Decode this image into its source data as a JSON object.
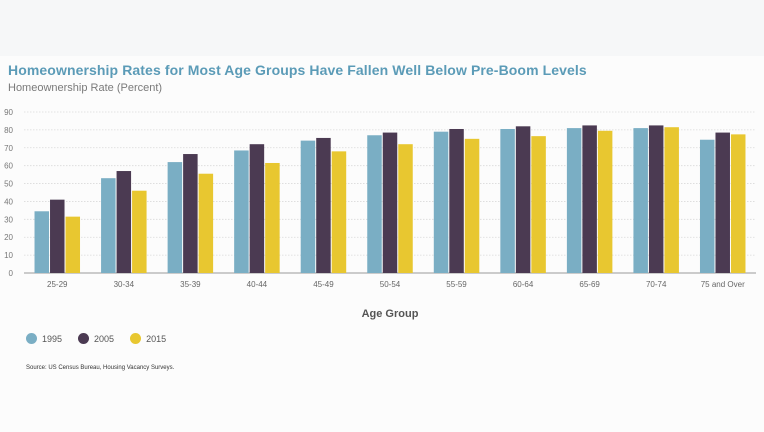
{
  "chart_data": {
    "type": "bar",
    "title": "Homeownership Rates for Most Age Groups Have Fallen Well Below Pre-Boom Levels",
    "ylabel": "Homeownership Rate (Percent)",
    "xlabel": "Age Group",
    "ylim": [
      0,
      90
    ],
    "yticks": [
      0,
      10,
      20,
      30,
      40,
      50,
      60,
      70,
      80,
      90
    ],
    "grid": true,
    "legend": "bottom-left",
    "categories": [
      "25-29",
      "30-34",
      "35-39",
      "40-44",
      "45-49",
      "50-54",
      "55-59",
      "60-64",
      "65-69",
      "70-74",
      "75 and Over"
    ],
    "series": [
      {
        "name": "1995",
        "color": "#7aaec4",
        "values": [
          34.5,
          53,
          62,
          68.5,
          74,
          77,
          79,
          80.5,
          81,
          81,
          74.5
        ]
      },
      {
        "name": "2005",
        "color": "#4b3a52",
        "values": [
          41,
          57,
          66.5,
          72,
          75.5,
          78.5,
          80.5,
          82,
          82.5,
          82.5,
          78.5
        ]
      },
      {
        "name": "2015",
        "color": "#e8c730",
        "values": [
          31.5,
          46,
          55.5,
          61.5,
          68,
          72,
          75,
          76.5,
          79.5,
          81.5,
          77.5
        ]
      }
    ],
    "source": "Source: US Census Bureau, Housing Vacancy Surveys."
  }
}
